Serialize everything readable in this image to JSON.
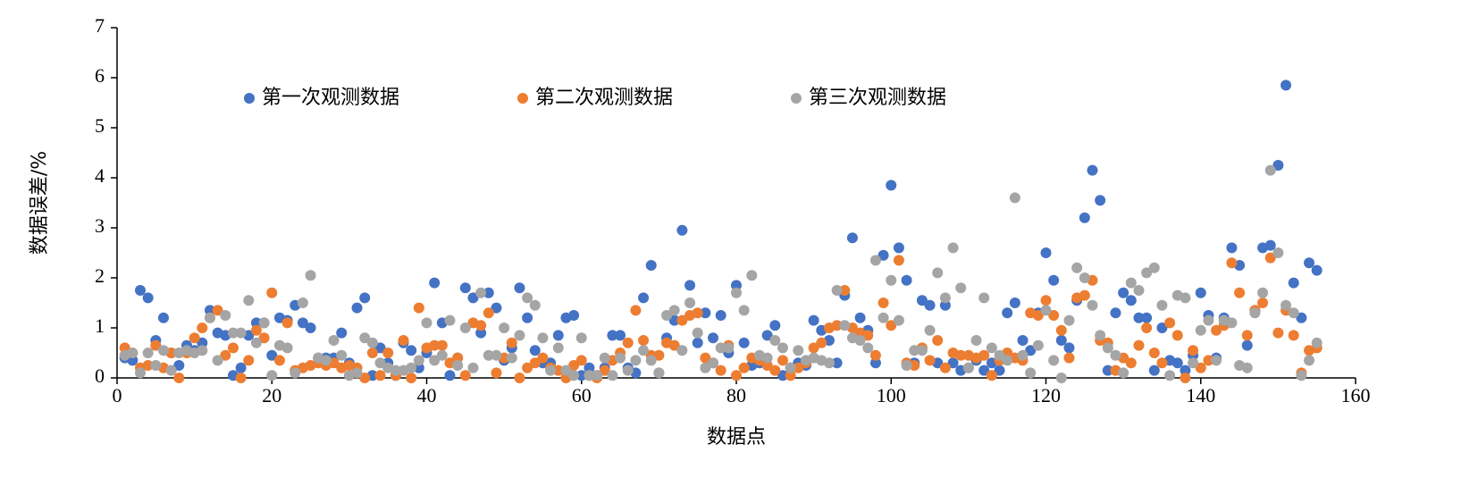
{
  "chart_data": {
    "type": "scatter",
    "x_label": "数据点",
    "y_label": "数据误差/%",
    "xlim": [
      0,
      160
    ],
    "xticks": [
      0,
      20,
      40,
      60,
      80,
      100,
      120,
      140,
      160
    ],
    "ylim": [
      0,
      7
    ],
    "yticks": [
      0,
      1,
      2,
      3,
      4,
      5,
      6,
      7
    ],
    "grid": false,
    "legend": "top-left",
    "x": [
      1,
      2,
      3,
      4,
      5,
      6,
      7,
      8,
      9,
      10,
      11,
      12,
      13,
      14,
      15,
      16,
      17,
      18,
      19,
      20,
      21,
      22,
      23,
      24,
      25,
      26,
      27,
      28,
      29,
      30,
      31,
      32,
      33,
      34,
      35,
      36,
      37,
      38,
      39,
      40,
      41,
      42,
      43,
      44,
      45,
      46,
      47,
      48,
      49,
      50,
      51,
      52,
      53,
      54,
      55,
      56,
      57,
      58,
      59,
      60,
      61,
      62,
      63,
      64,
      65,
      66,
      67,
      68,
      69,
      70,
      71,
      72,
      73,
      74,
      75,
      76,
      77,
      78,
      79,
      80,
      81,
      82,
      83,
      84,
      85,
      86,
      87,
      88,
      89,
      90,
      91,
      92,
      93,
      94,
      95,
      96,
      97,
      98,
      99,
      100,
      101,
      102,
      103,
      104,
      105,
      106,
      107,
      108,
      109,
      110,
      111,
      112,
      113,
      114,
      115,
      116,
      117,
      118,
      119,
      120,
      121,
      122,
      123,
      124,
      125,
      126,
      127,
      128,
      129,
      130,
      131,
      132,
      133,
      134,
      135,
      136,
      137,
      138,
      139,
      140,
      141,
      142,
      143,
      144,
      145,
      146,
      147,
      148,
      149,
      150,
      151,
      152,
      153,
      154,
      155
    ],
    "series": [
      {
        "name": "第一次观测数据",
        "color": "#4472c4",
        "values": [
          0.4,
          0.35,
          1.75,
          1.6,
          0.75,
          1.2,
          0.5,
          0.25,
          0.65,
          0.55,
          0.7,
          1.35,
          0.9,
          0.85,
          0.05,
          0.2,
          0.85,
          1.1,
          1.1,
          0.45,
          1.2,
          1.15,
          1.45,
          1.1,
          1.0,
          0.4,
          0.4,
          0.4,
          0.9,
          0.3,
          1.4,
          1.6,
          0.05,
          0.6,
          0.3,
          0.05,
          0.7,
          0.55,
          0.2,
          0.5,
          1.9,
          1.1,
          0.05,
          0.4,
          1.8,
          1.6,
          0.9,
          1.7,
          1.4,
          0.35,
          0.6,
          1.8,
          1.2,
          0.55,
          0.3,
          0.3,
          0.85,
          1.2,
          1.25,
          0.05,
          0.2,
          0.05,
          0.2,
          0.85,
          0.85,
          0.2,
          0.1,
          1.6,
          2.25,
          0.1,
          0.8,
          1.15,
          2.95,
          1.85,
          0.7,
          1.3,
          0.8,
          1.25,
          0.5,
          1.85,
          0.7,
          0.25,
          0.3,
          0.85,
          1.05,
          0.05,
          0.2,
          0.3,
          0.25,
          1.15,
          0.95,
          0.75,
          0.3,
          1.65,
          2.8,
          1.2,
          0.95,
          0.3,
          2.45,
          3.85,
          2.6,
          1.95,
          0.3,
          1.55,
          1.45,
          0.3,
          1.45,
          0.3,
          0.15,
          0.2,
          0.35,
          0.15,
          0.3,
          0.15,
          1.3,
          1.5,
          0.75,
          0.55,
          1.3,
          2.5,
          1.95,
          0.75,
          0.6,
          1.55,
          3.2,
          4.15,
          3.55,
          0.15,
          1.3,
          1.7,
          1.55,
          1.2,
          1.2,
          0.15,
          1.0,
          0.35,
          0.3,
          0.15,
          0.45,
          1.7,
          1.25,
          0.4,
          1.2,
          2.6,
          2.25,
          0.65,
          1.35,
          2.6,
          2.65,
          4.25,
          5.85,
          1.9,
          1.2,
          2.3,
          2.15
        ]
      },
      {
        "name": "第二次观测数据",
        "color": "#ed7d31",
        "values": [
          0.6,
          0.5,
          0.2,
          0.25,
          0.65,
          0.2,
          0.5,
          0.0,
          0.5,
          0.8,
          1.0,
          1.2,
          1.35,
          0.45,
          0.6,
          0.0,
          0.35,
          0.95,
          0.8,
          1.7,
          0.35,
          1.1,
          0.15,
          0.2,
          0.25,
          0.3,
          0.25,
          0.3,
          0.2,
          0.25,
          0.2,
          0.0,
          0.5,
          0.05,
          0.5,
          0.05,
          0.75,
          0.0,
          1.4,
          0.6,
          0.65,
          0.65,
          0.3,
          0.4,
          0.05,
          1.1,
          1.05,
          1.3,
          0.1,
          0.4,
          0.7,
          0.0,
          0.2,
          0.3,
          0.4,
          0.2,
          0.15,
          0.0,
          0.25,
          0.35,
          0.05,
          0.0,
          0.15,
          0.35,
          0.5,
          0.7,
          1.35,
          0.75,
          0.45,
          0.45,
          0.7,
          0.65,
          1.15,
          1.25,
          1.3,
          0.4,
          0.3,
          0.15,
          0.65,
          0.05,
          0.2,
          0.4,
          0.35,
          0.25,
          0.15,
          0.35,
          0.05,
          0.2,
          0.3,
          0.6,
          0.7,
          1.0,
          1.05,
          1.75,
          1.0,
          0.9,
          0.85,
          0.45,
          1.5,
          1.05,
          2.35,
          0.3,
          0.25,
          0.6,
          0.35,
          0.75,
          0.2,
          0.5,
          0.45,
          0.45,
          0.4,
          0.45,
          0.05,
          0.35,
          0.5,
          0.4,
          0.35,
          1.3,
          1.25,
          1.55,
          1.25,
          0.95,
          0.4,
          1.6,
          1.65,
          1.95,
          0.75,
          0.7,
          0.15,
          0.4,
          0.3,
          0.65,
          1.0,
          0.5,
          0.3,
          1.1,
          0.85,
          0.0,
          0.55,
          0.2,
          0.35,
          0.95,
          1.05,
          2.3,
          1.7,
          0.85,
          1.35,
          1.5,
          2.4,
          0.9,
          1.35,
          0.85,
          0.1,
          0.55,
          0.6
        ]
      },
      {
        "name": "第三次观测数据",
        "color": "#a5a5a5",
        "values": [
          0.45,
          0.5,
          0.1,
          0.5,
          0.25,
          0.55,
          0.15,
          0.5,
          0.55,
          0.5,
          0.55,
          1.2,
          0.35,
          1.25,
          0.9,
          0.9,
          1.55,
          0.7,
          1.1,
          0.05,
          0.65,
          0.6,
          0.1,
          1.5,
          2.05,
          0.4,
          0.35,
          0.75,
          0.45,
          0.05,
          0.1,
          0.8,
          0.7,
          0.3,
          0.2,
          0.15,
          0.15,
          0.2,
          0.35,
          1.1,
          0.35,
          0.45,
          1.15,
          0.25,
          1.0,
          0.2,
          1.7,
          0.45,
          0.45,
          1.0,
          0.4,
          0.85,
          1.6,
          1.45,
          0.8,
          0.15,
          0.6,
          0.15,
          0.05,
          0.8,
          0.05,
          0.05,
          0.4,
          0.05,
          0.4,
          0.15,
          0.35,
          0.55,
          0.35,
          0.1,
          1.25,
          1.35,
          0.55,
          1.5,
          0.9,
          0.2,
          0.3,
          0.6,
          0.6,
          1.7,
          1.35,
          2.05,
          0.45,
          0.4,
          0.75,
          0.6,
          0.2,
          0.55,
          0.35,
          0.4,
          0.35,
          0.3,
          1.75,
          1.05,
          0.8,
          0.75,
          0.6,
          2.35,
          1.2,
          1.95,
          1.15,
          0.25,
          0.55,
          0.55,
          0.95,
          2.1,
          1.6,
          2.6,
          1.8,
          0.2,
          0.75,
          1.6,
          0.6,
          0.45,
          0.35,
          3.6,
          0.45,
          0.1,
          0.65,
          1.35,
          0.35,
          0.0,
          1.15,
          2.2,
          2.0,
          1.45,
          0.85,
          0.6,
          0.45,
          0.1,
          1.9,
          1.75,
          2.1,
          2.2,
          1.45,
          0.05,
          1.65,
          1.6,
          0.3,
          0.95,
          1.15,
          0.35,
          1.15,
          1.1,
          0.25,
          0.2,
          1.3,
          1.7,
          4.15,
          2.5,
          1.45,
          1.3,
          0.05,
          0.35,
          0.7
        ]
      }
    ]
  }
}
